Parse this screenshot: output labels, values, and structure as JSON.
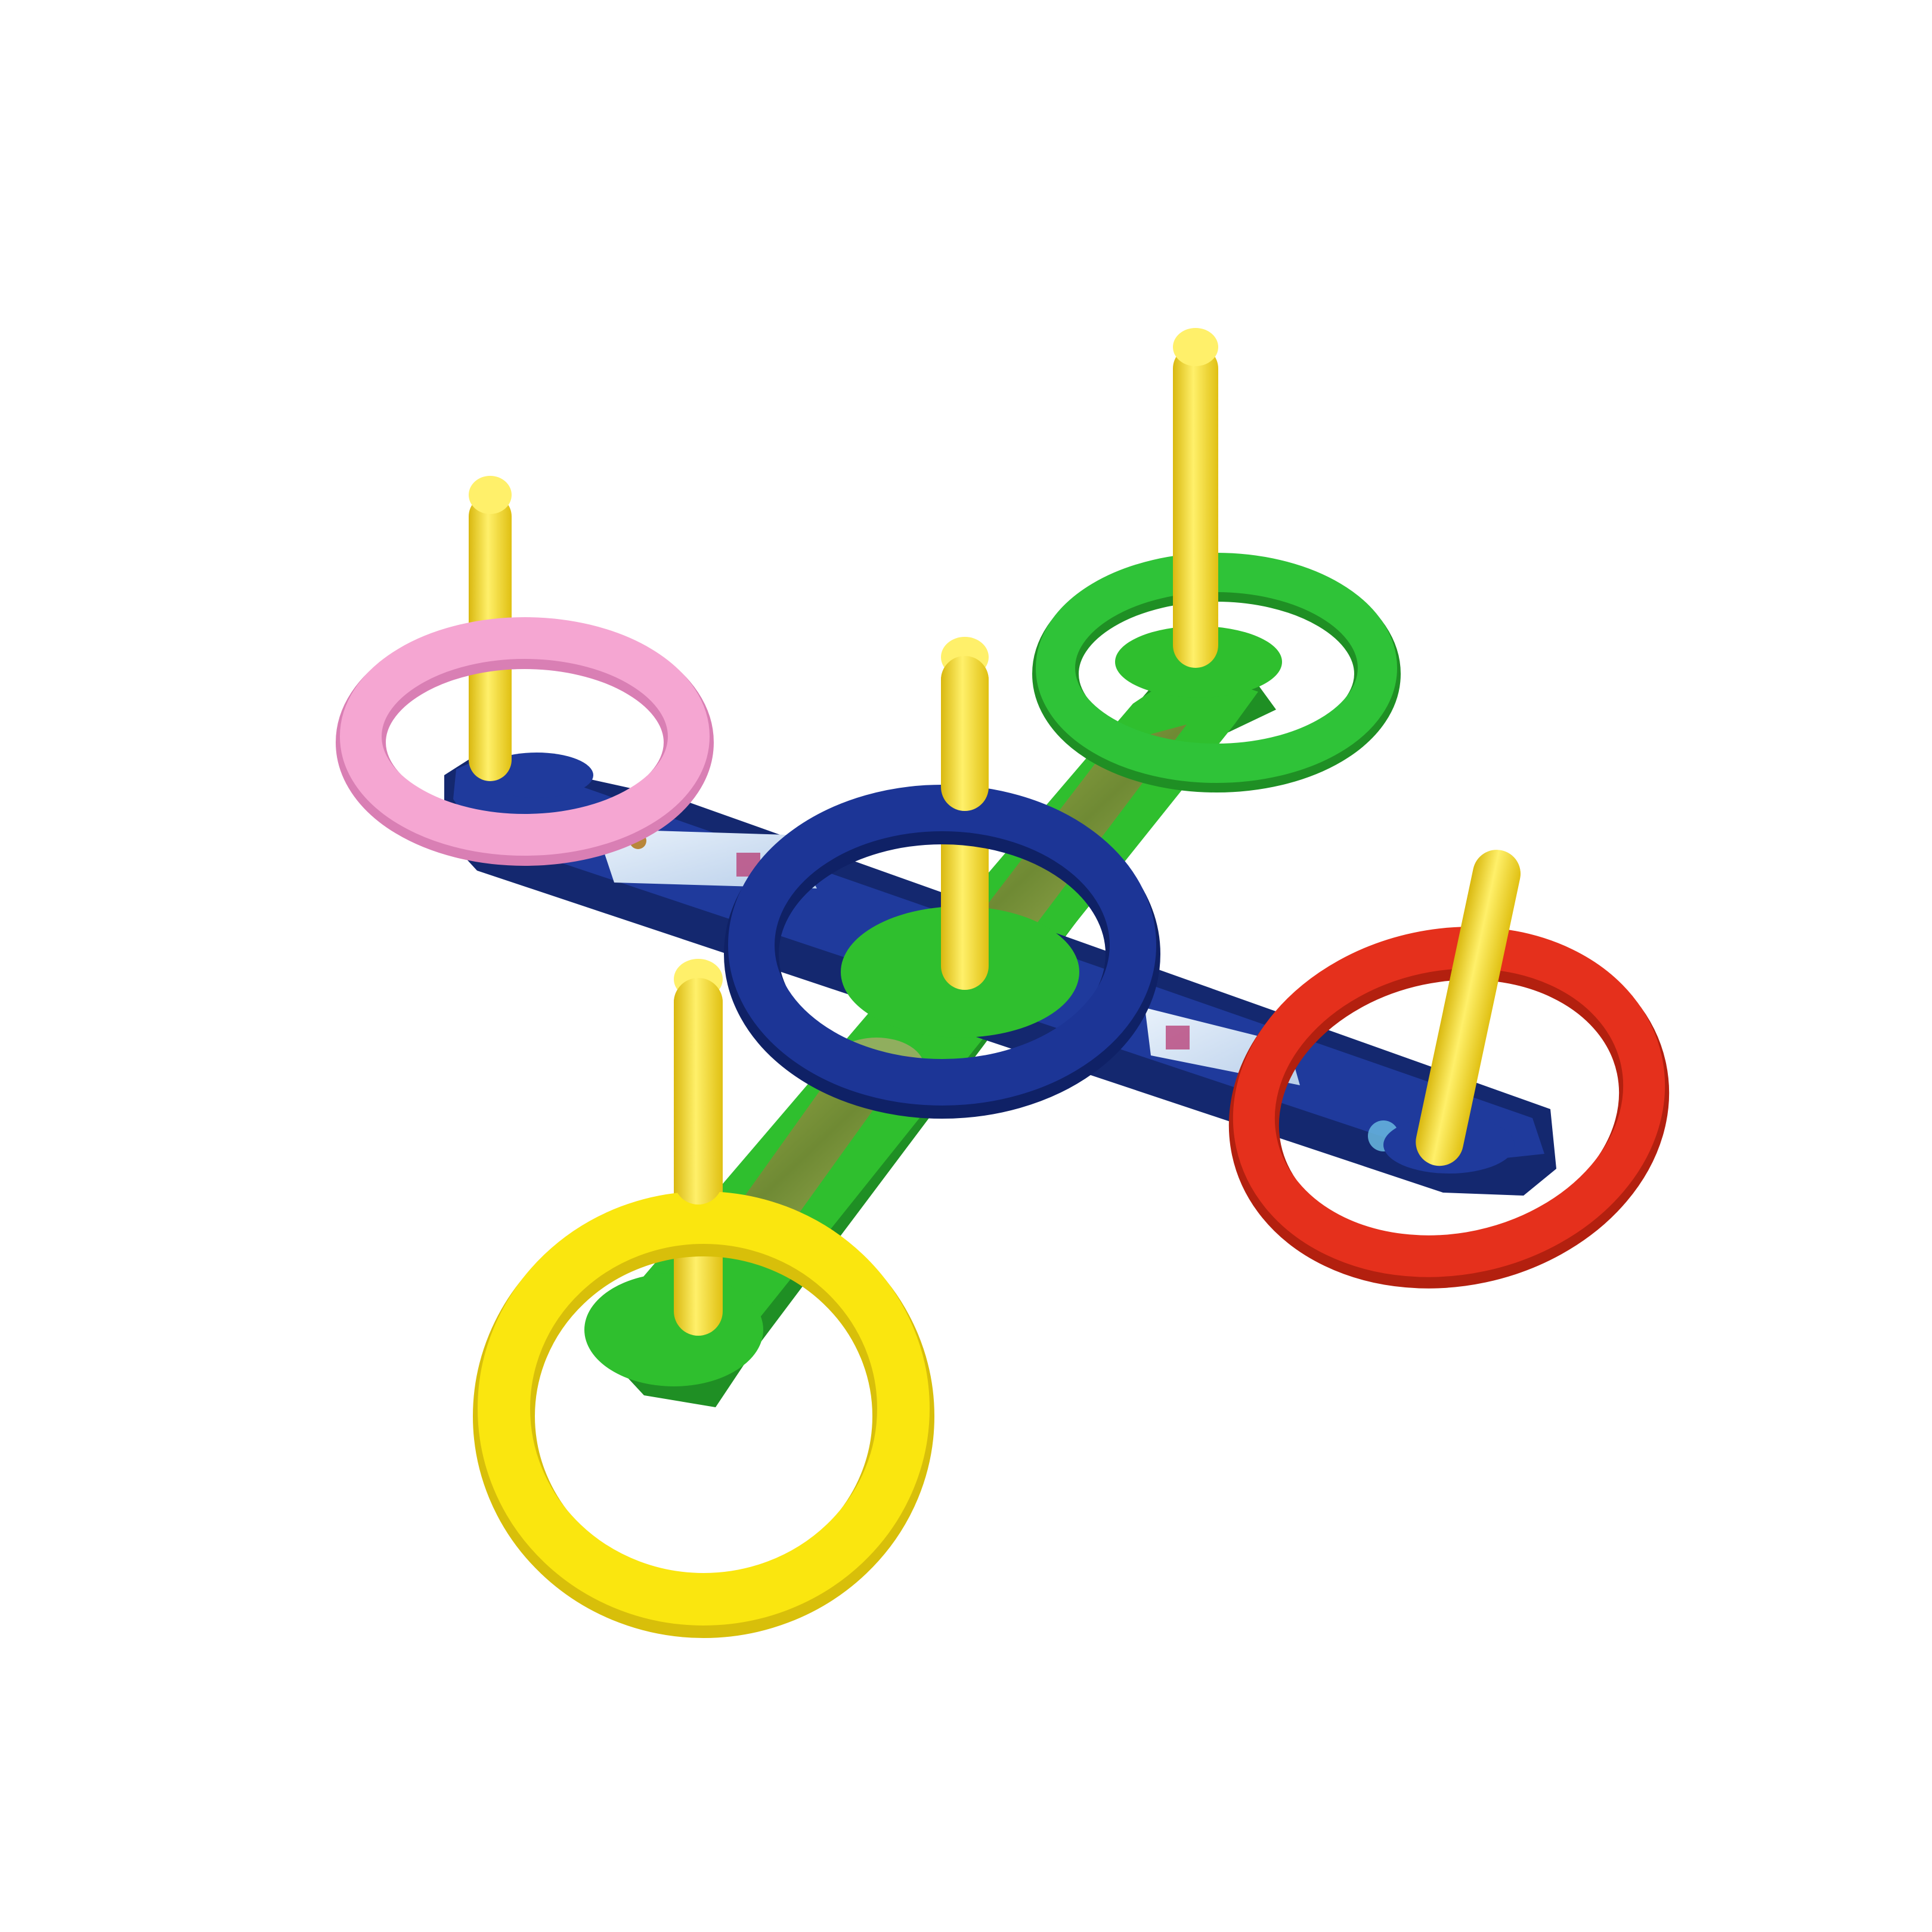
{
  "photo": {
    "subject": "ring-toss-toy",
    "background_color": "#ffffff",
    "colors": {
      "base_blue": "#1f3a9c",
      "base_blue_dark": "#14286f",
      "base_green": "#2fbf2e",
      "base_green_dark": "#1f8f24",
      "peg_yellow": "#f4dd1a",
      "peg_yellow_dark": "#d9b80f",
      "ring_pink": "#f5a6d2",
      "ring_green": "#2fc338",
      "ring_blue": "#1c3596",
      "ring_red": "#e5301c",
      "ring_yellow": "#fae60f",
      "sticker_sky": "#cfe0f2",
      "sticker_camo": "#8aa040"
    },
    "rings": [
      {
        "name": "pink-ring",
        "color": "#f5a6d2"
      },
      {
        "name": "green-ring",
        "color": "#2fc338"
      },
      {
        "name": "blue-ring",
        "color": "#1c3596"
      },
      {
        "name": "red-ring",
        "color": "#e5301c"
      },
      {
        "name": "yellow-ring",
        "color": "#fae60f"
      }
    ],
    "peg_count": 5
  }
}
